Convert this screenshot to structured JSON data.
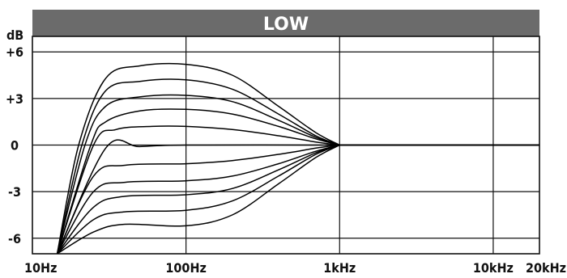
{
  "chart_data": {
    "type": "line",
    "title": "LOW",
    "ylabel": "dB",
    "xscale": "log",
    "xlim": [
      10,
      20000
    ],
    "ylim": [
      -7,
      7
    ],
    "x_ticks": [
      {
        "value": 10,
        "label": "10Hz"
      },
      {
        "value": 100,
        "label": "100Hz"
      },
      {
        "value": 1000,
        "label": "1kHz"
      },
      {
        "value": 10000,
        "label": "10kHz"
      },
      {
        "value": 20000,
        "label": "20kHz"
      }
    ],
    "y_ticks": [
      {
        "value": 6,
        "label": "+6"
      },
      {
        "value": 3,
        "label": "+3"
      },
      {
        "value": 0,
        "label": "0"
      },
      {
        "value": -3,
        "label": "-3"
      },
      {
        "value": -6,
        "label": "-6"
      }
    ],
    "grid": true,
    "line_color": "#000000",
    "header_color": "#6b6b6b",
    "series": [
      {
        "points": [
          [
            14.5,
            -7.0
          ],
          [
            20,
            0
          ],
          [
            30,
            4.3
          ],
          [
            50,
            5.1
          ],
          [
            100,
            5.2
          ],
          [
            200,
            4.5
          ],
          [
            400,
            2.5
          ],
          [
            700,
            0.8
          ],
          [
            1000,
            0
          ]
        ]
      },
      {
        "points": [
          [
            14.5,
            -7.0
          ],
          [
            21,
            0
          ],
          [
            30,
            3.5
          ],
          [
            50,
            4.1
          ],
          [
            100,
            4.2
          ],
          [
            200,
            3.6
          ],
          [
            400,
            2.0
          ],
          [
            700,
            0.6
          ],
          [
            1000,
            0
          ]
        ]
      },
      {
        "points": [
          [
            14.5,
            -7.0
          ],
          [
            22,
            0
          ],
          [
            30,
            2.5
          ],
          [
            50,
            3.1
          ],
          [
            100,
            3.2
          ],
          [
            200,
            2.8
          ],
          [
            400,
            1.6
          ],
          [
            700,
            0.5
          ],
          [
            1000,
            0
          ]
        ]
      },
      {
        "points": [
          [
            14.5,
            -7.0
          ],
          [
            24,
            0
          ],
          [
            30,
            1.5
          ],
          [
            50,
            2.2
          ],
          [
            100,
            2.3
          ],
          [
            200,
            2.0
          ],
          [
            400,
            1.2
          ],
          [
            700,
            0.4
          ],
          [
            1000,
            0
          ]
        ]
      },
      {
        "points": [
          [
            14.5,
            -7.0
          ],
          [
            25,
            0
          ],
          [
            35,
            1.0
          ],
          [
            60,
            1.2
          ],
          [
            100,
            1.2
          ],
          [
            200,
            1.0
          ],
          [
            400,
            0.6
          ],
          [
            700,
            0.2
          ],
          [
            1000,
            0
          ]
        ]
      },
      {
        "points": [
          [
            14.5,
            -7.0
          ],
          [
            30,
            -0.2
          ],
          [
            50,
            -0.1
          ],
          [
            100,
            0
          ],
          [
            1000,
            0
          ]
        ]
      },
      {
        "points": [
          [
            14.5,
            -7.0
          ],
          [
            25,
            -2.0
          ],
          [
            40,
            -1.3
          ],
          [
            100,
            -1.2
          ],
          [
            200,
            -1.0
          ],
          [
            400,
            -0.6
          ],
          [
            700,
            -0.2
          ],
          [
            1000,
            0
          ]
        ]
      },
      {
        "points": [
          [
            14.5,
            -7.0
          ],
          [
            25,
            -3.0
          ],
          [
            40,
            -2.4
          ],
          [
            100,
            -2.3
          ],
          [
            200,
            -2.0
          ],
          [
            400,
            -1.2
          ],
          [
            700,
            -0.4
          ],
          [
            1000,
            0
          ]
        ]
      },
      {
        "points": [
          [
            14.5,
            -7.0
          ],
          [
            25,
            -4.0
          ],
          [
            40,
            -3.3
          ],
          [
            100,
            -3.2
          ],
          [
            200,
            -2.8
          ],
          [
            400,
            -1.6
          ],
          [
            700,
            -0.5
          ],
          [
            1000,
            0
          ]
        ]
      },
      {
        "points": [
          [
            14.5,
            -7.0
          ],
          [
            25,
            -4.8
          ],
          [
            40,
            -4.3
          ],
          [
            100,
            -4.2
          ],
          [
            200,
            -3.6
          ],
          [
            400,
            -2.0
          ],
          [
            700,
            -0.6
          ],
          [
            1000,
            0
          ]
        ]
      },
      {
        "points": [
          [
            14.5,
            -7.0
          ],
          [
            25,
            -5.6
          ],
          [
            40,
            -5.1
          ],
          [
            100,
            -5.2
          ],
          [
            200,
            -4.5
          ],
          [
            400,
            -2.5
          ],
          [
            700,
            -0.8
          ],
          [
            1000,
            0
          ]
        ]
      }
    ]
  }
}
